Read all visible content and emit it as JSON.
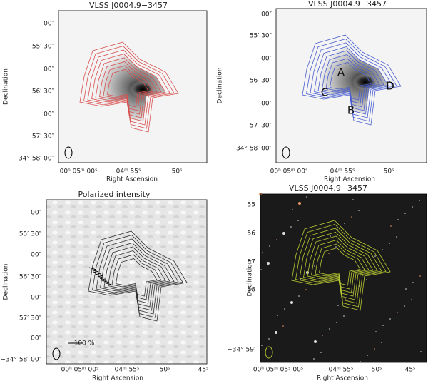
{
  "panels": [
    {
      "title": "VLSS J0004.9−3457",
      "x_label": "Right Ascension",
      "y_label": "Declination",
      "x_ticks": [
        "00ʰ 05ᵐ 00ˢ",
        "04ᵐ 55ˢ",
        "50ˢ"
      ],
      "y_ticks": [
        "00″",
        "55′ 30″",
        "00″",
        "56′ 30″",
        "00″",
        "57′ 30″",
        "−34° 58′ 00″"
      ],
      "annotations": []
    },
    {
      "title": "VLSS J0004.9−3457",
      "x_label": "Right Ascension",
      "y_label": "Declination",
      "x_ticks": [
        "00ʰ 05ᵐ 00ˢ",
        "04ᵐ 55ˢ",
        "50ˢ"
      ],
      "y_ticks": [
        "00″",
        "55′ 30″",
        "00″",
        "56′ 30″",
        "00″",
        "57′ 30″",
        "−34° 58′ 00″"
      ],
      "annotations": [
        "A",
        "B",
        "C",
        "D"
      ]
    },
    {
      "title": "Polarized intensity",
      "x_label": "Right Ascension",
      "y_label": "Declination",
      "x_ticks": [
        "00ʰ 05ᵐ 00ˢ",
        "04ᵐ 55ˢ",
        "50ˢ",
        "45ˢ"
      ],
      "y_ticks": [
        "00″",
        "55′ 30″",
        "00″",
        "56′ 30″",
        "00″",
        "57′ 30″",
        "00″",
        "−34° 58′ 00″"
      ],
      "annotations": [
        "100 %"
      ]
    },
    {
      "title": "VLSS J0004.9−3457",
      "x_label": "Right Ascension",
      "y_label": "Declination",
      "x_ticks": [
        "00ʰ 05ᵐ 05ˢ 00ˢ",
        "04ᵐ 55ˢ",
        "50ˢ",
        "45ˢ"
      ],
      "y_ticks": [
        "55",
        "56",
        "57",
        "58",
        "−34° 59′"
      ],
      "annotations": []
    }
  ]
}
